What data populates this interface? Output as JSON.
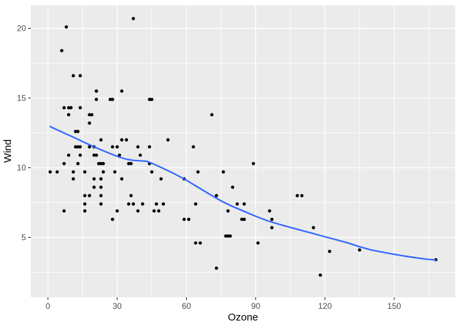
{
  "chart_data": {
    "type": "scatter",
    "title": "",
    "xlabel": "Ozone",
    "ylabel": "Wind",
    "xlim": [
      -7.4,
      176.4
    ],
    "ylim": [
      0.71,
      21.64
    ],
    "x_major_ticks": [
      0,
      30,
      60,
      90,
      120,
      150
    ],
    "x_tick_labels": [
      "0",
      "30",
      "60",
      "90",
      "120",
      "150"
    ],
    "x_minor_ticks": [
      15,
      45,
      75,
      105,
      135,
      165
    ],
    "y_major_ticks": [
      5,
      10,
      15,
      20
    ],
    "y_tick_labels": [
      "5",
      "10",
      "15",
      "20"
    ],
    "y_minor_ticks": [
      2.5,
      7.5,
      12.5,
      17.5
    ],
    "grid": "on",
    "legend": "none",
    "points": [
      [
        41,
        7.4
      ],
      [
        36,
        8.0
      ],
      [
        12,
        12.6
      ],
      [
        18,
        11.5
      ],
      [
        28,
        14.9
      ],
      [
        23,
        8.6
      ],
      [
        19,
        13.8
      ],
      [
        8,
        20.1
      ],
      [
        7,
        6.9
      ],
      [
        16,
        9.7
      ],
      [
        11,
        9.2
      ],
      [
        14,
        10.9
      ],
      [
        18,
        13.2
      ],
      [
        14,
        11.5
      ],
      [
        34,
        12.0
      ],
      [
        6,
        18.4
      ],
      [
        30,
        11.5
      ],
      [
        11,
        9.7
      ],
      [
        1,
        9.7
      ],
      [
        11,
        16.6
      ],
      [
        4,
        9.7
      ],
      [
        32,
        12.0
      ],
      [
        23,
        12.0
      ],
      [
        45,
        14.9
      ],
      [
        115,
        5.7
      ],
      [
        37,
        7.4
      ],
      [
        29,
        9.7
      ],
      [
        71,
        13.8
      ],
      [
        39,
        11.5
      ],
      [
        23,
        8.0
      ],
      [
        21,
        14.9
      ],
      [
        37,
        20.7
      ],
      [
        20,
        9.2
      ],
      [
        12,
        11.5
      ],
      [
        13,
        10.3
      ],
      [
        135,
        4.1
      ],
      [
        49,
        9.2
      ],
      [
        32,
        9.2
      ],
      [
        64,
        4.6
      ],
      [
        40,
        10.9
      ],
      [
        77,
        5.1
      ],
      [
        97,
        6.3
      ],
      [
        97,
        5.7
      ],
      [
        85,
        7.4
      ],
      [
        10,
        14.3
      ],
      [
        27,
        14.9
      ],
      [
        7,
        14.3
      ],
      [
        48,
        6.9
      ],
      [
        35,
        10.3
      ],
      [
        61,
        6.3
      ],
      [
        79,
        5.1
      ],
      [
        63,
        11.5
      ],
      [
        16,
        6.9
      ],
      [
        80,
        8.6
      ],
      [
        108,
        8.0
      ],
      [
        20,
        8.6
      ],
      [
        52,
        12.0
      ],
      [
        82,
        7.4
      ],
      [
        50,
        7.4
      ],
      [
        64,
        7.4
      ],
      [
        59,
        9.2
      ],
      [
        39,
        6.9
      ],
      [
        9,
        13.8
      ],
      [
        16,
        7.4
      ],
      [
        78,
        6.9
      ],
      [
        35,
        7.4
      ],
      [
        66,
        4.6
      ],
      [
        122,
        4.0
      ],
      [
        89,
        10.3
      ],
      [
        110,
        8.0
      ],
      [
        44,
        11.5
      ],
      [
        28,
        11.5
      ],
      [
        65,
        9.7
      ],
      [
        22,
        10.3
      ],
      [
        59,
        6.3
      ],
      [
        23,
        7.4
      ],
      [
        31,
        10.9
      ],
      [
        44,
        10.3
      ],
      [
        21,
        15.5
      ],
      [
        9,
        14.3
      ],
      [
        45,
        9.7
      ],
      [
        168,
        3.4
      ],
      [
        73,
        8.0
      ],
      [
        76,
        9.7
      ],
      [
        118,
        2.3
      ],
      [
        84,
        6.3
      ],
      [
        85,
        6.3
      ],
      [
        96,
        6.9
      ],
      [
        78,
        5.1
      ],
      [
        73,
        2.8
      ],
      [
        91,
        4.6
      ],
      [
        47,
        7.4
      ],
      [
        32,
        15.5
      ],
      [
        20,
        10.9
      ],
      [
        23,
        10.3
      ],
      [
        21,
        10.9
      ],
      [
        24,
        9.7
      ],
      [
        44,
        14.9
      ],
      [
        21,
        15.5
      ],
      [
        28,
        6.3
      ],
      [
        9,
        10.9
      ],
      [
        13,
        11.5
      ],
      [
        46,
        6.9
      ],
      [
        18,
        13.8
      ],
      [
        13,
        10.3
      ],
      [
        24,
        10.3
      ],
      [
        16,
        8.0
      ],
      [
        13,
        12.6
      ],
      [
        23,
        9.2
      ],
      [
        36,
        10.3
      ],
      [
        7,
        10.3
      ],
      [
        14,
        16.6
      ],
      [
        30,
        6.9
      ],
      [
        14,
        14.3
      ],
      [
        18,
        8.0
      ],
      [
        20,
        11.5
      ]
    ],
    "smooth_line": [
      [
        1,
        12.95
      ],
      [
        4,
        12.72
      ],
      [
        8,
        12.42
      ],
      [
        12,
        12.12
      ],
      [
        16,
        11.8
      ],
      [
        20,
        11.5
      ],
      [
        24,
        11.22
      ],
      [
        28,
        10.95
      ],
      [
        31,
        10.76
      ],
      [
        34,
        10.61
      ],
      [
        37,
        10.53
      ],
      [
        40,
        10.5
      ],
      [
        43,
        10.46
      ],
      [
        46,
        10.25
      ],
      [
        50,
        9.95
      ],
      [
        55,
        9.55
      ],
      [
        60,
        9.1
      ],
      [
        65,
        8.6
      ],
      [
        70,
        8.1
      ],
      [
        75,
        7.62
      ],
      [
        80,
        7.22
      ],
      [
        85,
        6.87
      ],
      [
        90,
        6.52
      ],
      [
        95,
        6.2
      ],
      [
        100,
        5.95
      ],
      [
        105,
        5.72
      ],
      [
        110,
        5.5
      ],
      [
        115,
        5.28
      ],
      [
        120,
        5.05
      ],
      [
        125,
        4.83
      ],
      [
        130,
        4.6
      ],
      [
        135,
        4.33
      ],
      [
        140,
        4.1
      ],
      [
        145,
        3.94
      ],
      [
        150,
        3.79
      ],
      [
        155,
        3.65
      ],
      [
        160,
        3.53
      ],
      [
        164,
        3.44
      ],
      [
        168,
        3.38
      ]
    ],
    "colors": {
      "panel_background": "#EBEBEB",
      "gridline": "#FFFFFF",
      "point": "#000000",
      "smooth_line": "#3366FF",
      "tick_label": "#4D4D4D",
      "tick_mark": "#333333",
      "axis_title": "#000000",
      "figure_background": "#FFFFFF"
    }
  }
}
